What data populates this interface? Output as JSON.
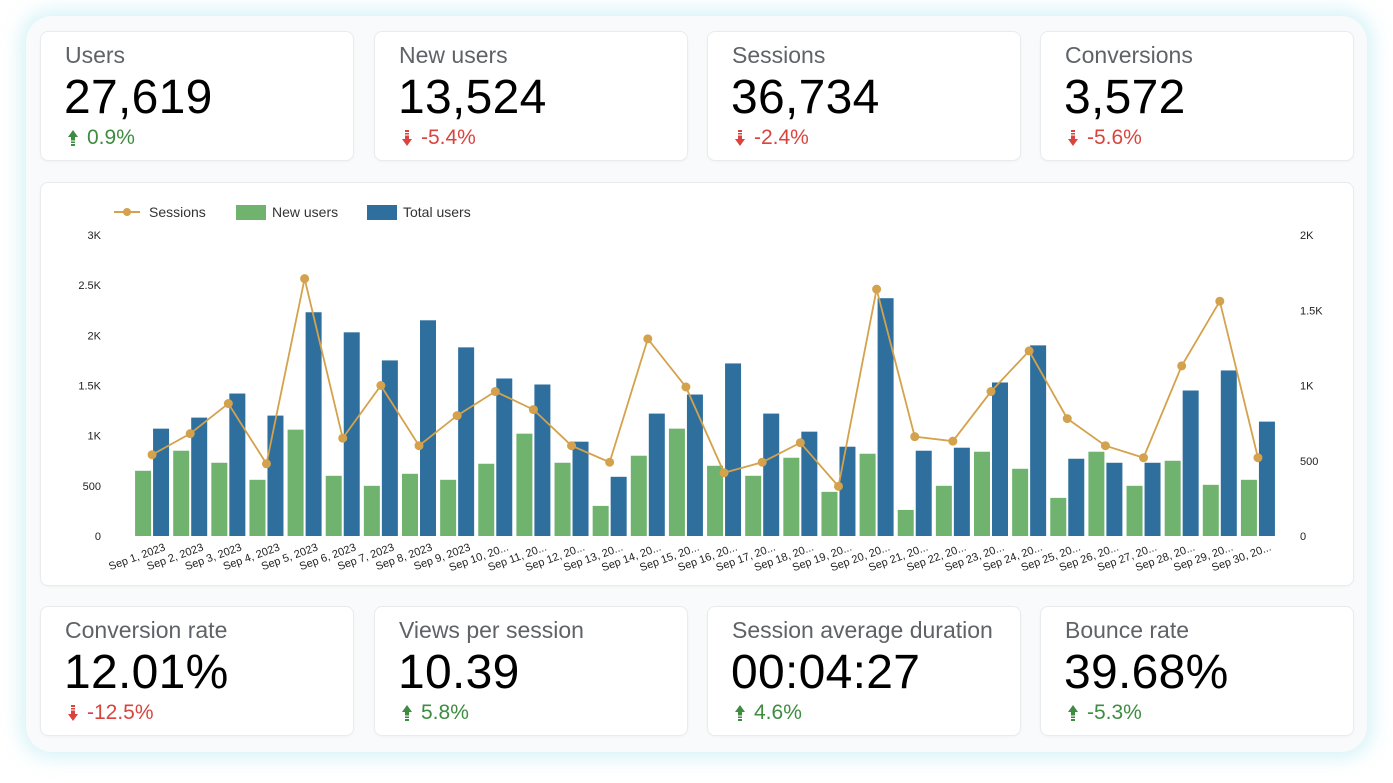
{
  "kpis_top": [
    {
      "label": "Users",
      "value": "27,619",
      "change": "0.9%",
      "direction": "up"
    },
    {
      "label": "New users",
      "value": "13,524",
      "change": "-5.4%",
      "direction": "down"
    },
    {
      "label": "Sessions",
      "value": "36,734",
      "change": "-2.4%",
      "direction": "down"
    },
    {
      "label": "Conversions",
      "value": "3,572",
      "change": "-5.6%",
      "direction": "down"
    }
  ],
  "kpis_bottom": [
    {
      "label": "Conversion rate",
      "value": "12.01%",
      "change": "-12.5%",
      "direction": "down"
    },
    {
      "label": "Views per session",
      "value": "10.39",
      "change": "5.8%",
      "direction": "up"
    },
    {
      "label": "Session average duration",
      "value": "00:04:27",
      "change": "4.6%",
      "direction": "up"
    },
    {
      "label": "Bounce rate",
      "value": "39.68%",
      "change": "-5.3%",
      "direction": "up-bad"
    }
  ],
  "colors": {
    "up": "#3d8c40",
    "down": "#d8453e",
    "sessions": "#d4a24c",
    "new_users": "#6fb36f",
    "total_users": "#2e6f9e",
    "axis_text": "#222222"
  },
  "chart_data": {
    "type": "bar",
    "legend": {
      "placement": "top-left",
      "entries": [
        "Sessions",
        "New users",
        "Total users"
      ]
    },
    "categories": [
      "Sep 1, 2023",
      "Sep 2, 2023",
      "Sep 3, 2023",
      "Sep 4, 2023",
      "Sep 5, 2023",
      "Sep 6, 2023",
      "Sep 7, 2023",
      "Sep 8, 2023",
      "Sep 9, 2023",
      "Sep 10, 20...",
      "Sep 11, 20...",
      "Sep 12, 20...",
      "Sep 13, 20...",
      "Sep 14, 20...",
      "Sep 15, 20...",
      "Sep 16, 20...",
      "Sep 17, 20...",
      "Sep 18, 20...",
      "Sep 19, 20...",
      "Sep 20, 20...",
      "Sep 21, 20...",
      "Sep 22, 20...",
      "Sep 23, 20...",
      "Sep 24, 20...",
      "Sep 25, 20...",
      "Sep 26, 20...",
      "Sep 27, 20...",
      "Sep 28, 20...",
      "Sep 29, 20...",
      "Sep 30, 20..."
    ],
    "left_axis": {
      "range": [
        0,
        3000
      ],
      "ticks": [
        0,
        500,
        1000,
        1500,
        2000,
        2500,
        3000
      ],
      "tick_labels": [
        "0",
        "500",
        "1K",
        "1.5K",
        "2K",
        "2.5K",
        "3K"
      ]
    },
    "right_axis": {
      "range": [
        0,
        2000
      ],
      "ticks": [
        0,
        500,
        1000,
        1500,
        2000
      ],
      "tick_labels": [
        "0",
        "500",
        "1K",
        "1.5K",
        "2K"
      ]
    },
    "grid": false,
    "series": [
      {
        "name": "New users",
        "type": "bar",
        "axis": "left",
        "values": [
          650,
          850,
          730,
          560,
          1060,
          600,
          500,
          620,
          560,
          720,
          1020,
          730,
          300,
          800,
          1070,
          700,
          600,
          780,
          440,
          820,
          260,
          500,
          840,
          670,
          380,
          840,
          500,
          750,
          510,
          560
        ]
      },
      {
        "name": "Total users",
        "type": "bar",
        "axis": "left",
        "values": [
          1070,
          1180,
          1420,
          1200,
          2230,
          2030,
          1750,
          2150,
          1880,
          1570,
          1510,
          940,
          590,
          1220,
          1410,
          1720,
          1220,
          1040,
          890,
          2370,
          850,
          880,
          1530,
          1900,
          770,
          730,
          730,
          1450,
          1650,
          1140
        ]
      },
      {
        "name": "Sessions",
        "type": "line",
        "axis": "right",
        "values": [
          540,
          680,
          880,
          480,
          1710,
          650,
          1000,
          600,
          800,
          960,
          840,
          600,
          490,
          1310,
          990,
          420,
          490,
          620,
          330,
          1640,
          660,
          630,
          960,
          1230,
          780,
          600,
          520,
          1130,
          1560,
          520
        ]
      }
    ]
  }
}
